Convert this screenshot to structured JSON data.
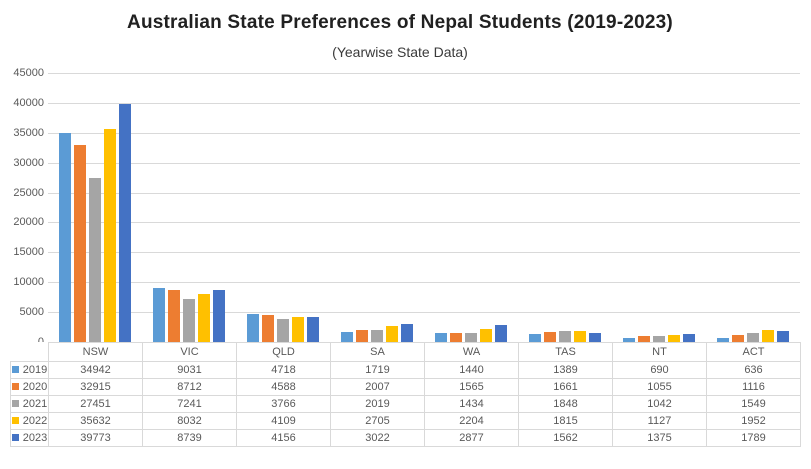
{
  "chart": {
    "title": "Australian State Preferences of Nepal Students (2019-2023)",
    "subtitle": "(Yearwise State Data)"
  },
  "chart_data": {
    "type": "bar",
    "title": "Australian State Preferences of Nepal Students (2019-2023)",
    "subtitle": "(Yearwise State Data)",
    "categories": [
      "NSW",
      "VIC",
      "QLD",
      "SA",
      "WA",
      "TAS",
      "NT",
      "ACT"
    ],
    "series": [
      {
        "name": "2019",
        "color": "#5B9BD5",
        "values": [
          34942,
          9031,
          4718,
          1719,
          1440,
          1389,
          690,
          636
        ]
      },
      {
        "name": "2020",
        "color": "#ED7D31",
        "values": [
          32915,
          8712,
          4588,
          2007,
          1565,
          1661,
          1055,
          1116
        ]
      },
      {
        "name": "2021",
        "color": "#A5A5A5",
        "values": [
          27451,
          7241,
          3766,
          2019,
          1434,
          1848,
          1042,
          1549
        ]
      },
      {
        "name": "2022",
        "color": "#FFC000",
        "values": [
          35632,
          8032,
          4109,
          2705,
          2204,
          1815,
          1127,
          1952
        ]
      },
      {
        "name": "2023",
        "color": "#4472C4",
        "values": [
          39773,
          8739,
          4156,
          3022,
          2877,
          1562,
          1375,
          1789
        ]
      }
    ],
    "xlabel": "",
    "ylabel": "",
    "ylim": [
      0,
      45000
    ],
    "y_ticks": [
      0,
      5000,
      10000,
      15000,
      20000,
      25000,
      30000,
      35000,
      40000,
      45000
    ],
    "grid": true,
    "legend_position": "data-table-row-headers",
    "data_table": true
  },
  "colors": {
    "gridline": "#d9d9d9",
    "table_border": "#d9d9d9",
    "axis_text": "#595959",
    "table_text": "#595959",
    "title_text": "#212121",
    "background": "#ffffff"
  }
}
